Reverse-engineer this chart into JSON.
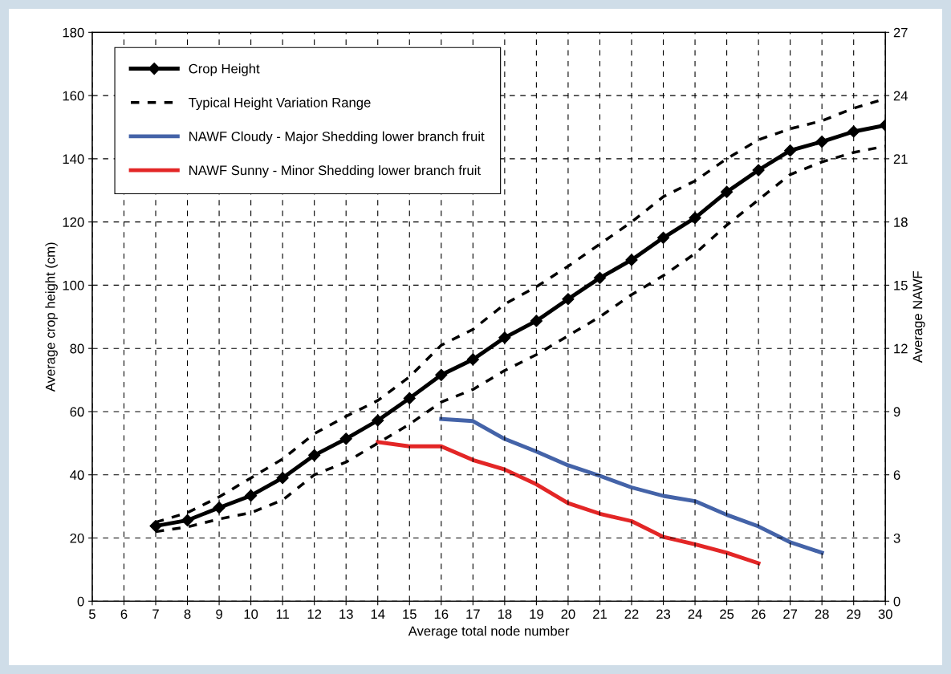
{
  "chart_data": {
    "type": "line",
    "xlabel": "Average total node number",
    "ylabel": "Average crop height (cm)",
    "y2label": "Average NAWF",
    "xlim": [
      5,
      30
    ],
    "xticks": [
      5,
      6,
      7,
      8,
      9,
      10,
      11,
      12,
      13,
      14,
      15,
      16,
      17,
      18,
      19,
      20,
      21,
      22,
      23,
      24,
      25,
      26,
      27,
      28,
      29,
      30
    ],
    "ylim": [
      0,
      180
    ],
    "yticks": [
      0,
      20,
      40,
      60,
      80,
      100,
      120,
      140,
      160,
      180
    ],
    "y2lim": [
      0,
      27
    ],
    "y2ticks": [
      0,
      3,
      6,
      9,
      12,
      15,
      18,
      21,
      24,
      27
    ],
    "grid": true,
    "legend": "top left",
    "series": [
      {
        "name": "Crop Height",
        "color": "#000000",
        "marker": "diamond",
        "line_style": "solid",
        "x": [
          7,
          8,
          9,
          10,
          11,
          12,
          13,
          14,
          15,
          16,
          17,
          18,
          19,
          20,
          21,
          22,
          23,
          24,
          25,
          26,
          27,
          28,
          29,
          30
        ],
        "values": [
          23.8,
          25.6,
          29.6,
          33.4,
          39,
          46.2,
          51.4,
          57.2,
          64.2,
          71.6,
          76.5,
          83.4,
          88.7,
          95.6,
          102.3,
          108,
          115,
          121.3,
          129.5,
          136.4,
          142.6,
          145.4,
          148.6,
          150.6
        ]
      },
      {
        "name": "Typical Height Variation Range",
        "color": "#000000",
        "marker": "none",
        "line_style": "dashed",
        "x": [
          7,
          8,
          9,
          10,
          11,
          12,
          13,
          14,
          15,
          16,
          17,
          18,
          19,
          20,
          21,
          22,
          23,
          24,
          25,
          26,
          27,
          28,
          29,
          30
        ],
        "values": [
          25,
          28,
          33,
          39,
          45,
          53,
          58.5,
          63.5,
          71,
          81,
          86,
          94,
          99.5,
          106,
          113,
          120,
          128,
          133,
          140,
          146,
          149.5,
          152,
          156,
          159
        ]
      },
      {
        "color": "#000000",
        "marker": "none",
        "line_style": "dashed",
        "x": [
          7,
          8,
          9,
          10,
          11,
          12,
          13,
          14,
          15,
          16,
          17,
          18,
          19,
          20,
          21,
          22,
          23,
          24,
          25,
          26,
          27,
          28,
          29,
          30
        ],
        "values": [
          22,
          23.5,
          26,
          28,
          32,
          40,
          44,
          50,
          56,
          63,
          67,
          73,
          78,
          84,
          90,
          97,
          103,
          110,
          119,
          127,
          135,
          139,
          142,
          144
        ]
      },
      {
        "name": "NAWF Cloudy - Major Shedding lower branch fruit",
        "color": "#4463a8",
        "marker": "none",
        "line_style": "solid",
        "axis": "y2",
        "x": [
          16,
          17,
          18,
          19,
          20,
          21,
          22,
          23,
          24,
          25,
          26,
          27,
          28
        ],
        "values": [
          8.65,
          8.55,
          7.7,
          7.1,
          6.45,
          5.95,
          5.4,
          5.0,
          4.75,
          4.1,
          3.55,
          2.8,
          2.3
        ]
      },
      {
        "name": "NAWF Sunny - Minor Shedding lower branch fruit",
        "color": "#e32626",
        "marker": "none",
        "line_style": "solid",
        "axis": "y2",
        "x": [
          14,
          15,
          16,
          17,
          18,
          19,
          20,
          21,
          22,
          23,
          24,
          25,
          26
        ],
        "values": [
          7.55,
          7.35,
          7.35,
          6.7,
          6.25,
          5.55,
          4.65,
          4.15,
          3.8,
          3.05,
          2.7,
          2.3,
          1.8
        ]
      }
    ]
  }
}
